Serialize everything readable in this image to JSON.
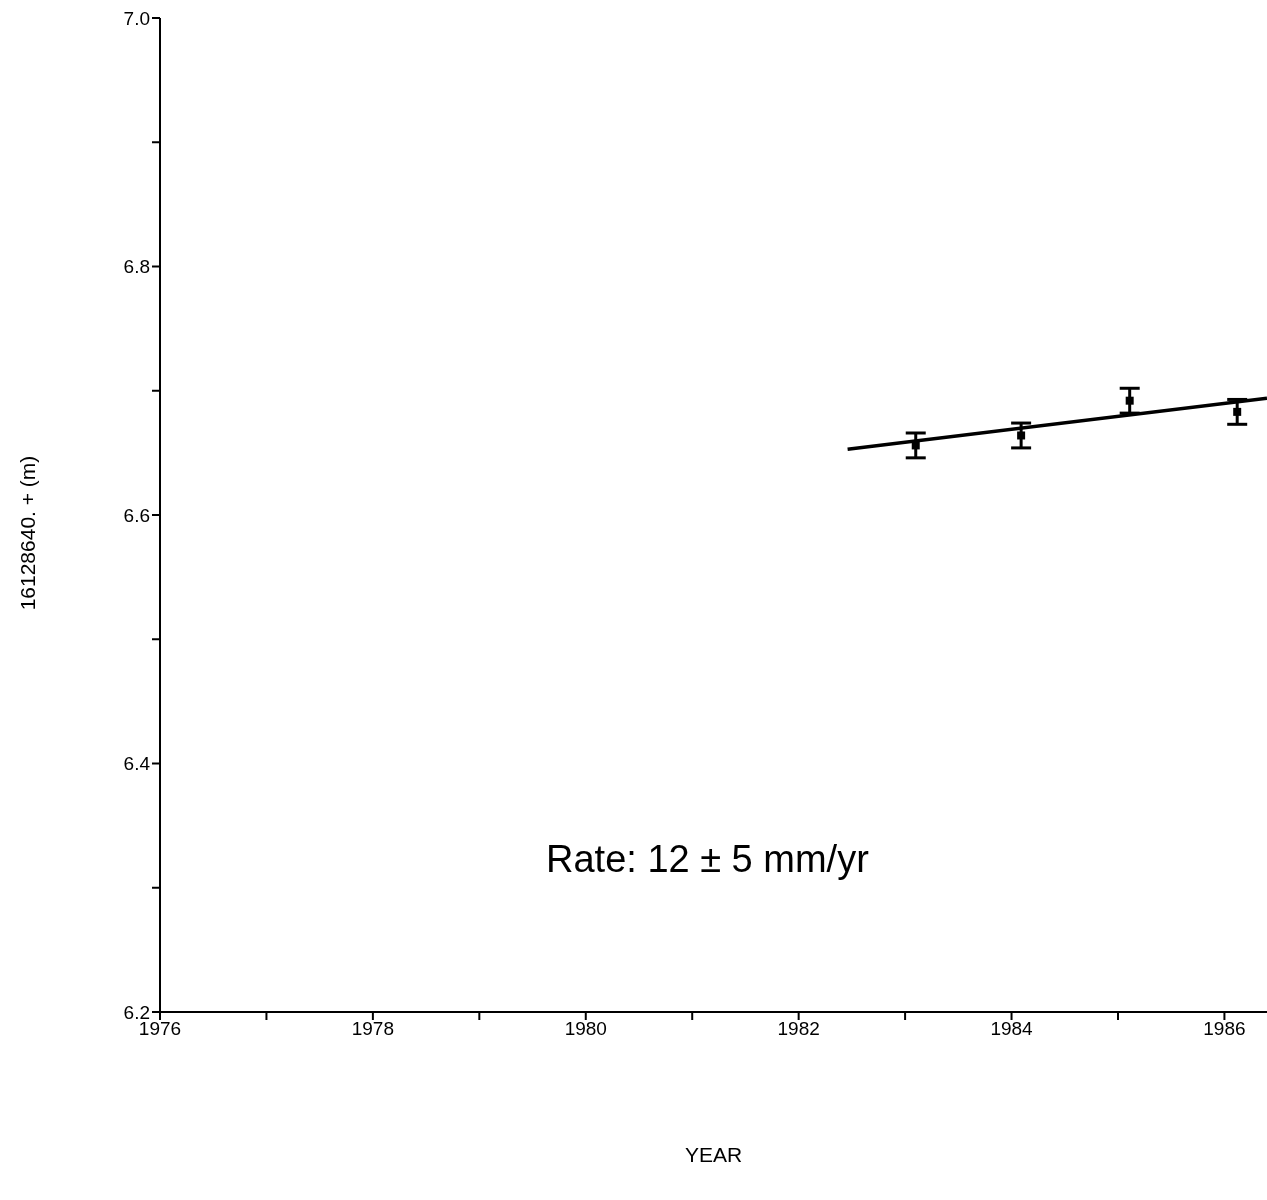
{
  "chart_data": {
    "type": "scatter",
    "xlabel": "YEAR",
    "ylabel": "16128640. + (m)",
    "annotations": [
      "Rate: 12 ± 5 mm/yr"
    ],
    "marker": "square",
    "xlim": [
      1976,
      1986.4
    ],
    "ylim": [
      6.2,
      7.0
    ],
    "xticks": [
      1976,
      {
        "value": 1977,
        "label": null
      },
      1978,
      {
        "value": 1979,
        "label": null
      },
      1980,
      {
        "value": 1981,
        "label": null
      },
      1982,
      {
        "value": 1983,
        "label": null
      },
      1984,
      {
        "value": 1985,
        "label": null
      },
      1986
    ],
    "yticks": [
      6.2,
      {
        "value": 6.3,
        "label": null
      },
      6.4,
      {
        "value": 6.5,
        "label": null
      },
      6.6,
      {
        "value": 6.7,
        "label": null
      },
      6.8,
      {
        "value": 6.9,
        "label": null
      },
      {
        "value": 7,
        "label": "7.0"
      }
    ],
    "series": [
      {
        "color": "#000000",
        "x": [
          1983.1,
          1984.09,
          1985.11,
          1986.12
        ],
        "values": [
          6.656,
          6.664,
          6.692,
          6.683
        ],
        "errors": [
          0.01,
          0.01,
          0.01,
          0.01
        ]
      },
      {
        "type": "line",
        "color": "#000000",
        "line_style": "solid",
        "marker": "none",
        "x": [
          1982.46,
          1986.4
        ],
        "values": [
          6.653,
          6.694
        ]
      }
    ]
  }
}
